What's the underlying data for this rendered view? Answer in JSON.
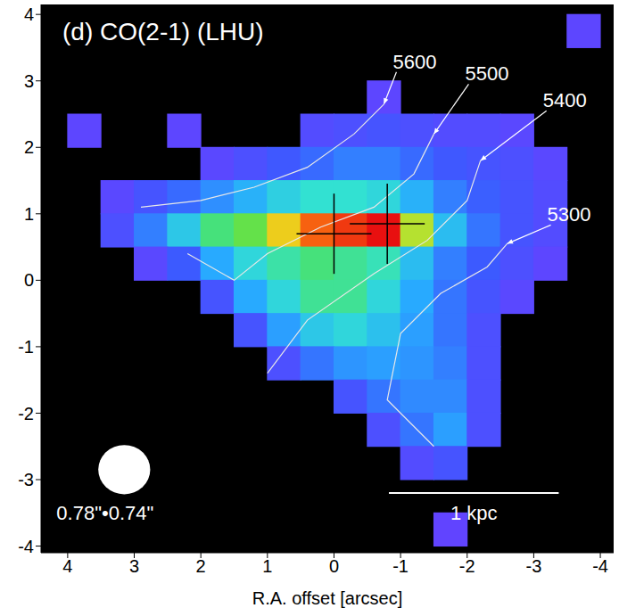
{
  "chart_data": {
    "type": "heatmap",
    "title": "(d) CO(2-1) (LHU)",
    "x_label": "R.A. offset [arcsec]",
    "xlim": [
      4.4,
      -4.2
    ],
    "xticks": [
      4,
      3,
      2,
      1,
      0,
      -1,
      -2,
      -3,
      -4
    ],
    "ylim": [
      -4.1,
      4.15
    ],
    "yticks": [
      -4,
      -3,
      -2,
      -1,
      0,
      1,
      2,
      3,
      4
    ],
    "zlim": [
      0,
      1
    ],
    "cells": {
      "x": [
        3.75,
        3.25,
        2.75,
        2.25,
        1.75,
        1.25,
        0.75,
        0.25,
        -0.25,
        -0.75,
        -1.25,
        -1.75,
        -2.25,
        -2.75,
        -3.25,
        -3.75
      ],
      "y": [
        3.75,
        3.25,
        2.75,
        2.25,
        1.75,
        1.25,
        0.75,
        0.25,
        -0.25,
        -0.75,
        -1.25,
        -1.75,
        -2.25,
        -2.75,
        -3.25,
        -3.75
      ],
      "z": [
        [
          null,
          null,
          null,
          null,
          null,
          null,
          null,
          null,
          null,
          null,
          null,
          null,
          null,
          null,
          null,
          0.05
        ],
        [
          null,
          null,
          null,
          null,
          null,
          null,
          null,
          null,
          null,
          null,
          null,
          null,
          null,
          null,
          null,
          null
        ],
        [
          null,
          null,
          null,
          null,
          null,
          null,
          null,
          null,
          null,
          0.05,
          null,
          null,
          null,
          null,
          null,
          null
        ],
        [
          0.05,
          null,
          null,
          0.05,
          null,
          null,
          null,
          0.08,
          0.1,
          0.12,
          0.1,
          0.08,
          0.08,
          0.06,
          null,
          null
        ],
        [
          null,
          null,
          null,
          null,
          0.06,
          0.1,
          0.14,
          0.18,
          0.22,
          0.22,
          0.18,
          0.14,
          0.12,
          0.1,
          0.06,
          null
        ],
        [
          null,
          0.06,
          0.12,
          0.18,
          0.25,
          0.32,
          0.4,
          0.45,
          0.45,
          0.42,
          0.32,
          0.22,
          0.16,
          0.12,
          0.08,
          null
        ],
        [
          null,
          0.1,
          0.22,
          0.38,
          0.55,
          0.62,
          0.78,
          0.92,
          0.96,
          1.0,
          0.7,
          0.35,
          0.2,
          0.12,
          0.08,
          null
        ],
        [
          null,
          null,
          0.06,
          0.15,
          0.3,
          0.42,
          0.5,
          0.55,
          0.52,
          0.48,
          0.35,
          0.22,
          0.15,
          0.1,
          0.05,
          null
        ],
        [
          null,
          null,
          null,
          null,
          0.12,
          0.3,
          0.42,
          0.52,
          0.52,
          0.42,
          0.3,
          0.2,
          0.12,
          0.06,
          null,
          null
        ],
        [
          null,
          null,
          null,
          null,
          null,
          0.12,
          0.28,
          0.38,
          0.42,
          0.36,
          0.28,
          0.2,
          0.1,
          null,
          null,
          null
        ],
        [
          null,
          null,
          null,
          null,
          null,
          null,
          0.1,
          0.2,
          0.26,
          0.28,
          0.26,
          0.22,
          0.1,
          null,
          null,
          null
        ],
        [
          null,
          null,
          null,
          null,
          null,
          null,
          null,
          null,
          0.12,
          0.2,
          0.24,
          0.24,
          0.1,
          null,
          null,
          null
        ],
        [
          null,
          null,
          null,
          null,
          null,
          null,
          null,
          null,
          null,
          0.1,
          0.2,
          0.28,
          0.1,
          null,
          null,
          null
        ],
        [
          null,
          null,
          null,
          null,
          null,
          null,
          null,
          null,
          null,
          null,
          0.08,
          0.12,
          null,
          null,
          null,
          null
        ],
        [
          null,
          null,
          null,
          null,
          null,
          null,
          null,
          null,
          null,
          null,
          null,
          null,
          null,
          null,
          null,
          null
        ],
        [
          null,
          null,
          null,
          null,
          null,
          null,
          null,
          null,
          null,
          null,
          null,
          0.04,
          null,
          null,
          null,
          null
        ]
      ]
    },
    "contours": [
      {
        "level": 5600,
        "points": [
          [
            -0.75,
            2.65
          ],
          [
            -0.3,
            2.2
          ],
          [
            0.4,
            1.7
          ],
          [
            1.2,
            1.4
          ],
          [
            2.0,
            1.2
          ],
          [
            2.9,
            1.1
          ]
        ]
      },
      {
        "level": 5500,
        "points": [
          [
            -1.5,
            2.2
          ],
          [
            -1.2,
            1.6
          ],
          [
            -0.6,
            1.1
          ],
          [
            0.2,
            0.8
          ],
          [
            1.0,
            0.4
          ],
          [
            1.5,
            0.0
          ],
          [
            2.2,
            0.4
          ]
        ]
      },
      {
        "level": 5400,
        "points": [
          [
            -2.2,
            1.8
          ],
          [
            -2.0,
            1.2
          ],
          [
            -1.4,
            0.6
          ],
          [
            -0.6,
            0.1
          ],
          [
            0.4,
            -0.6
          ],
          [
            1.0,
            -1.4
          ]
        ]
      },
      {
        "level": 5300,
        "points": [
          [
            -2.6,
            0.55
          ],
          [
            -2.3,
            0.2
          ],
          [
            -1.6,
            -0.2
          ],
          [
            -1.0,
            -0.8
          ],
          [
            -0.8,
            -1.8
          ],
          [
            -1.5,
            -2.5
          ]
        ]
      }
    ],
    "peaks": [
      [
        0,
        0.7
      ],
      [
        -0.8,
        0.85
      ]
    ],
    "beam": {
      "label": "0.78\"•0.74\"",
      "major": 0.78,
      "minor": 0.74
    },
    "scale_bar": {
      "label": "1 kpc",
      "length": 2.55
    }
  }
}
